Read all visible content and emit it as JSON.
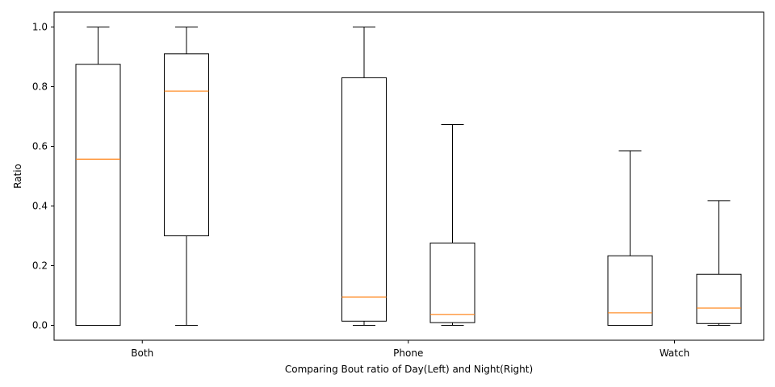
{
  "chart_data": {
    "type": "box",
    "title": "",
    "xlabel": "Comparing Bout ratio of Day(Left) and Night(Right)",
    "ylabel": "Ratio",
    "categories": [
      "Both",
      "Phone",
      "Watch"
    ],
    "ylim": [
      -0.05,
      1.05
    ],
    "yticks": [
      0.0,
      0.2,
      0.4,
      0.6,
      0.8,
      1.0
    ],
    "ytick_labels": [
      "0.0",
      "0.2",
      "0.4",
      "0.6",
      "0.8",
      "1.0"
    ],
    "grid": false,
    "colors": {
      "box": "#000000",
      "median": "#ff7f0e"
    },
    "groups": [
      {
        "category": "Both",
        "boxes": [
          {
            "period": "Day",
            "whislo": 0.0,
            "q1": 0.0,
            "median": 0.557,
            "q3": 0.875,
            "whishi": 1.0
          },
          {
            "period": "Night",
            "whislo": 0.0,
            "q1": 0.3,
            "median": 0.785,
            "q3": 0.91,
            "whishi": 1.0
          }
        ]
      },
      {
        "category": "Phone",
        "boxes": [
          {
            "period": "Day",
            "whislo": 0.0,
            "q1": 0.014,
            "median": 0.095,
            "q3": 0.83,
            "whishi": 1.0
          },
          {
            "period": "Night",
            "whislo": 0.0,
            "q1": 0.009,
            "median": 0.036,
            "q3": 0.276,
            "whishi": 0.673
          }
        ]
      },
      {
        "category": "Watch",
        "boxes": [
          {
            "period": "Day",
            "whislo": 0.0,
            "q1": 0.0,
            "median": 0.042,
            "q3": 0.233,
            "whishi": 0.585
          },
          {
            "period": "Night",
            "whislo": 0.0,
            "q1": 0.006,
            "median": 0.058,
            "q3": 0.171,
            "whishi": 0.418
          }
        ]
      }
    ]
  }
}
